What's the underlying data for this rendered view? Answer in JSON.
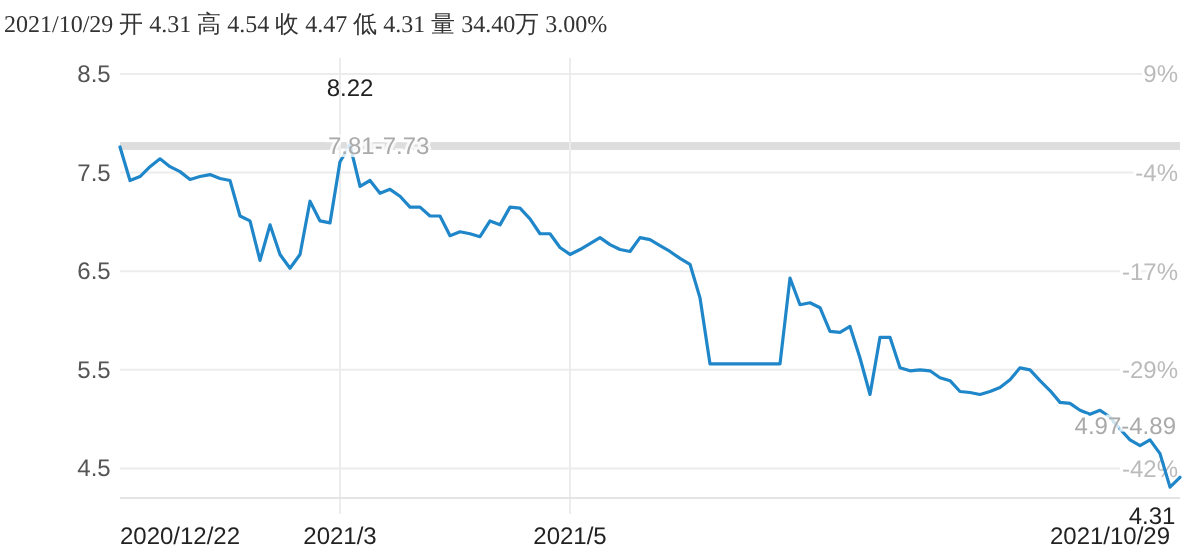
{
  "chart_data": {
    "type": "line",
    "title": "2021/10/29 开 4.31 高 4.54 收 4.47 低 4.31 量 34.40万 3.00%",
    "categories": [
      null,
      null,
      null,
      null,
      null,
      null,
      "2020/12/22",
      null,
      null,
      null,
      null,
      null,
      null,
      null,
      null,
      null,
      null,
      null,
      null,
      null,
      null,
      null,
      "2021/3",
      null,
      null,
      null,
      null,
      null,
      null,
      null,
      null,
      null,
      null,
      null,
      null,
      null,
      null,
      null,
      null,
      null,
      null,
      null,
      null,
      null,
      null,
      "2021/5",
      null,
      null,
      null,
      null,
      null,
      null,
      null,
      null,
      null,
      null,
      null,
      null,
      null,
      null,
      null,
      null,
      null,
      null,
      null,
      null,
      null,
      null,
      null,
      null,
      null,
      null,
      null,
      null,
      null,
      null,
      null,
      null,
      null,
      null,
      null,
      null,
      null,
      null,
      null,
      null,
      null,
      null,
      null,
      null,
      null,
      null,
      null,
      null,
      null,
      null,
      null,
      null,
      null,
      "2021/10/29",
      null,
      null,
      null,
      null,
      null,
      null,
      null
    ],
    "values": [
      7.76,
      7.42,
      7.46,
      7.56,
      7.64,
      7.56,
      7.51,
      7.43,
      7.46,
      7.48,
      7.44,
      7.42,
      7.06,
      7.01,
      6.61,
      6.97,
      6.67,
      6.53,
      6.67,
      7.21,
      7.01,
      6.99,
      7.61,
      7.78,
      7.36,
      7.42,
      7.29,
      7.33,
      7.26,
      7.15,
      7.15,
      7.06,
      7.06,
      6.86,
      6.9,
      6.88,
      6.85,
      7.01,
      6.97,
      7.15,
      7.14,
      7.03,
      6.88,
      6.88,
      6.74,
      6.67,
      6.72,
      6.78,
      6.84,
      6.77,
      6.72,
      6.7,
      6.84,
      6.82,
      6.76,
      6.7,
      6.63,
      6.57,
      6.23,
      5.56,
      5.56,
      5.56,
      5.56,
      5.56,
      5.56,
      5.56,
      5.56,
      6.43,
      6.16,
      6.18,
      6.13,
      5.89,
      5.88,
      5.94,
      5.62,
      5.25,
      5.83,
      5.83,
      5.52,
      5.49,
      5.5,
      5.49,
      5.42,
      5.39,
      5.28,
      5.27,
      5.25,
      5.28,
      5.32,
      5.4,
      5.52,
      5.5,
      5.39,
      5.29,
      5.17,
      5.16,
      5.09,
      5.05,
      5.09,
      5.02,
      4.9,
      4.79,
      4.73,
      4.79,
      4.65,
      4.31,
      4.41
    ],
    "color": "#1f87c9",
    "ylim": [
      4.2,
      8.5
    ],
    "yticks": [
      4.5,
      5.5,
      6.5,
      7.5,
      8.5
    ],
    "y2lim": [
      -46.0,
      9.3
    ],
    "y2ticks": [
      {
        "value": -42.2,
        "label": "-42%"
      },
      {
        "value": -29.3,
        "label": "-29%"
      },
      {
        "value": -16.5,
        "label": "-17%"
      },
      {
        "value": -3.6,
        "label": "-4%"
      },
      {
        "value": 9.3,
        "label": "9%"
      }
    ],
    "grid": true,
    "bands": [
      {
        "axis": "y",
        "from": 7.73,
        "to": 7.81,
        "color": "#dddddd"
      }
    ],
    "annotations": [
      "8.22",
      {
        "text": "7.81-7.73",
        "x": "2021/3",
        "y": 7.77
      },
      {
        "text": "4.97-4.89",
        "y": 4.93
      },
      "4.31"
    ]
  }
}
